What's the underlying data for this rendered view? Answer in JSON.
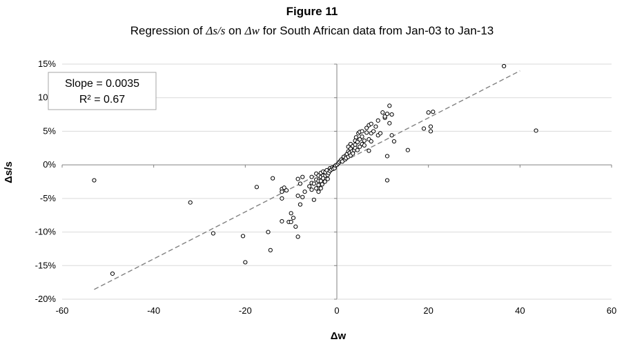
{
  "chart_data": {
    "type": "scatter",
    "title": "Figure 11",
    "subtitle": {
      "prefix": "Regression of ",
      "expr1": "Δs/s",
      "mid": " on ",
      "expr2": "Δw",
      "suffix": " for South African data from Jan-03 to Jan-13"
    },
    "xlabel": "Δw",
    "ylabel": "Δs/s",
    "xlim": [
      -60,
      60
    ],
    "ylim": [
      -0.2,
      0.15
    ],
    "x_ticks": [
      -60,
      -40,
      -20,
      0,
      20,
      40,
      60
    ],
    "x_tick_labels": [
      "-60",
      "-40",
      "-20",
      "0",
      "20",
      "40",
      "60"
    ],
    "y_ticks": [
      -0.2,
      -0.15,
      -0.1,
      -0.05,
      0,
      0.05,
      0.1,
      0.15
    ],
    "y_tick_labels": [
      "-20%",
      "-15%",
      "-10%",
      "-5%",
      "0%",
      "5%",
      "10%",
      "15%"
    ],
    "grid": "horizontal",
    "annotation": {
      "slope": "Slope = 0.0035",
      "r2": "R² = 0.67"
    },
    "trendline": {
      "slope": 0.0035,
      "intercept": 0,
      "x_range": [
        -53,
        40
      ]
    },
    "marker_color": "#000000",
    "trend_color": "#808080",
    "points": [
      [
        -53,
        -0.023
      ],
      [
        -49,
        -0.162
      ],
      [
        -32,
        -0.056
      ],
      [
        -27,
        -0.102
      ],
      [
        -20.5,
        -0.106
      ],
      [
        -20,
        -0.145
      ],
      [
        -17.5,
        -0.033
      ],
      [
        -15,
        -0.1
      ],
      [
        -14.5,
        -0.127
      ],
      [
        -14,
        -0.02
      ],
      [
        -12,
        -0.036
      ],
      [
        -12,
        -0.04
      ],
      [
        -12,
        -0.05
      ],
      [
        -12,
        -0.084
      ],
      [
        -11.5,
        -0.034
      ],
      [
        -11,
        -0.038
      ],
      [
        -10.5,
        -0.085
      ],
      [
        -10,
        -0.072
      ],
      [
        -10,
        -0.085
      ],
      [
        -9.5,
        -0.079
      ],
      [
        -9,
        -0.092
      ],
      [
        -8.5,
        -0.107
      ],
      [
        -8.5,
        -0.046
      ],
      [
        -8,
        -0.059
      ],
      [
        -8,
        -0.028
      ],
      [
        -8.5,
        -0.021
      ],
      [
        -7.5,
        -0.018
      ],
      [
        -7.5,
        -0.048
      ],
      [
        -7,
        -0.04
      ],
      [
        -6,
        -0.032
      ],
      [
        -5.5,
        -0.027
      ],
      [
        -5.5,
        -0.018
      ],
      [
        -5.5,
        -0.037
      ],
      [
        -5,
        -0.028
      ],
      [
        -5,
        -0.052
      ],
      [
        -4.5,
        -0.035
      ],
      [
        -4.5,
        -0.022
      ],
      [
        -4.5,
        -0.013
      ],
      [
        -4,
        -0.04
      ],
      [
        -4,
        -0.03
      ],
      [
        -4,
        -0.016
      ],
      [
        -4,
        -0.024
      ],
      [
        -3.5,
        -0.024
      ],
      [
        -3.5,
        -0.035
      ],
      [
        -3.5,
        -0.012
      ],
      [
        -3.5,
        -0.018
      ],
      [
        -3.2,
        -0.029
      ],
      [
        -3,
        -0.016
      ],
      [
        -3,
        -0.01
      ],
      [
        -3,
        -0.02
      ],
      [
        -2.6,
        -0.025
      ],
      [
        -2.5,
        -0.016
      ],
      [
        -2.5,
        -0.011
      ],
      [
        -2.2,
        -0.008
      ],
      [
        -2,
        -0.015
      ],
      [
        -2,
        -0.021
      ],
      [
        -1.8,
        -0.012
      ],
      [
        -1.5,
        -0.009
      ],
      [
        -1.5,
        -0.005
      ],
      [
        -1.2,
        -0.007
      ],
      [
        -1,
        -0.004
      ],
      [
        -0.8,
        -0.006
      ],
      [
        -0.5,
        -0.003
      ],
      [
        -0.5,
        -0.005
      ],
      [
        -0.3,
        -0.001
      ],
      [
        0,
        0
      ],
      [
        0.3,
        0.002
      ],
      [
        0.5,
        0.004
      ],
      [
        0.8,
        0.006
      ],
      [
        1,
        0.008
      ],
      [
        1.2,
        0.005
      ],
      [
        1.5,
        0.01
      ],
      [
        1.5,
        0.012
      ],
      [
        1.8,
        0.008
      ],
      [
        2,
        0.014
      ],
      [
        2,
        0.01
      ],
      [
        2.2,
        0.016
      ],
      [
        2.5,
        0.012
      ],
      [
        2.5,
        0.02
      ],
      [
        2.5,
        0.027
      ],
      [
        2.8,
        0.018
      ],
      [
        3,
        0.014
      ],
      [
        3,
        0.024
      ],
      [
        3,
        0.031
      ],
      [
        3.3,
        0.02
      ],
      [
        3.5,
        0.028
      ],
      [
        3.5,
        0.017
      ],
      [
        3.8,
        0.022
      ],
      [
        4,
        0.03
      ],
      [
        4,
        0.036
      ],
      [
        4,
        0.025
      ],
      [
        4.2,
        0.041
      ],
      [
        4.5,
        0.034
      ],
      [
        4.5,
        0.022
      ],
      [
        4.7,
        0.047
      ],
      [
        5,
        0.038
      ],
      [
        5,
        0.027
      ],
      [
        5,
        0.049
      ],
      [
        5.5,
        0.031
      ],
      [
        5.5,
        0.042
      ],
      [
        5.5,
        0.05
      ],
      [
        6,
        0.036
      ],
      [
        6,
        0.029
      ],
      [
        6.5,
        0.048
      ],
      [
        6.5,
        0.055
      ],
      [
        7,
        0.038
      ],
      [
        7,
        0.059
      ],
      [
        7,
        0.021
      ],
      [
        7.5,
        0.035
      ],
      [
        7.5,
        0.047
      ],
      [
        7.5,
        0.061
      ],
      [
        8,
        0.05
      ],
      [
        8.5,
        0.057
      ],
      [
        9,
        0.044
      ],
      [
        9,
        0.066
      ],
      [
        9.5,
        0.047
      ],
      [
        10,
        0.078
      ],
      [
        10.5,
        0.07
      ],
      [
        10.5,
        0.072
      ],
      [
        11,
        0.013
      ],
      [
        11,
        0.076
      ],
      [
        11,
        -0.023
      ],
      [
        11.5,
        0.088
      ],
      [
        11.5,
        0.062
      ],
      [
        12,
        0.075
      ],
      [
        12,
        0.044
      ],
      [
        12.5,
        0.035
      ],
      [
        15.5,
        0.022
      ],
      [
        19,
        0.054
      ],
      [
        20,
        0.078
      ],
      [
        20.5,
        0.057
      ],
      [
        20.5,
        0.05
      ],
      [
        21,
        0.079
      ],
      [
        36.5,
        0.147
      ],
      [
        43.5,
        0.051
      ]
    ]
  }
}
